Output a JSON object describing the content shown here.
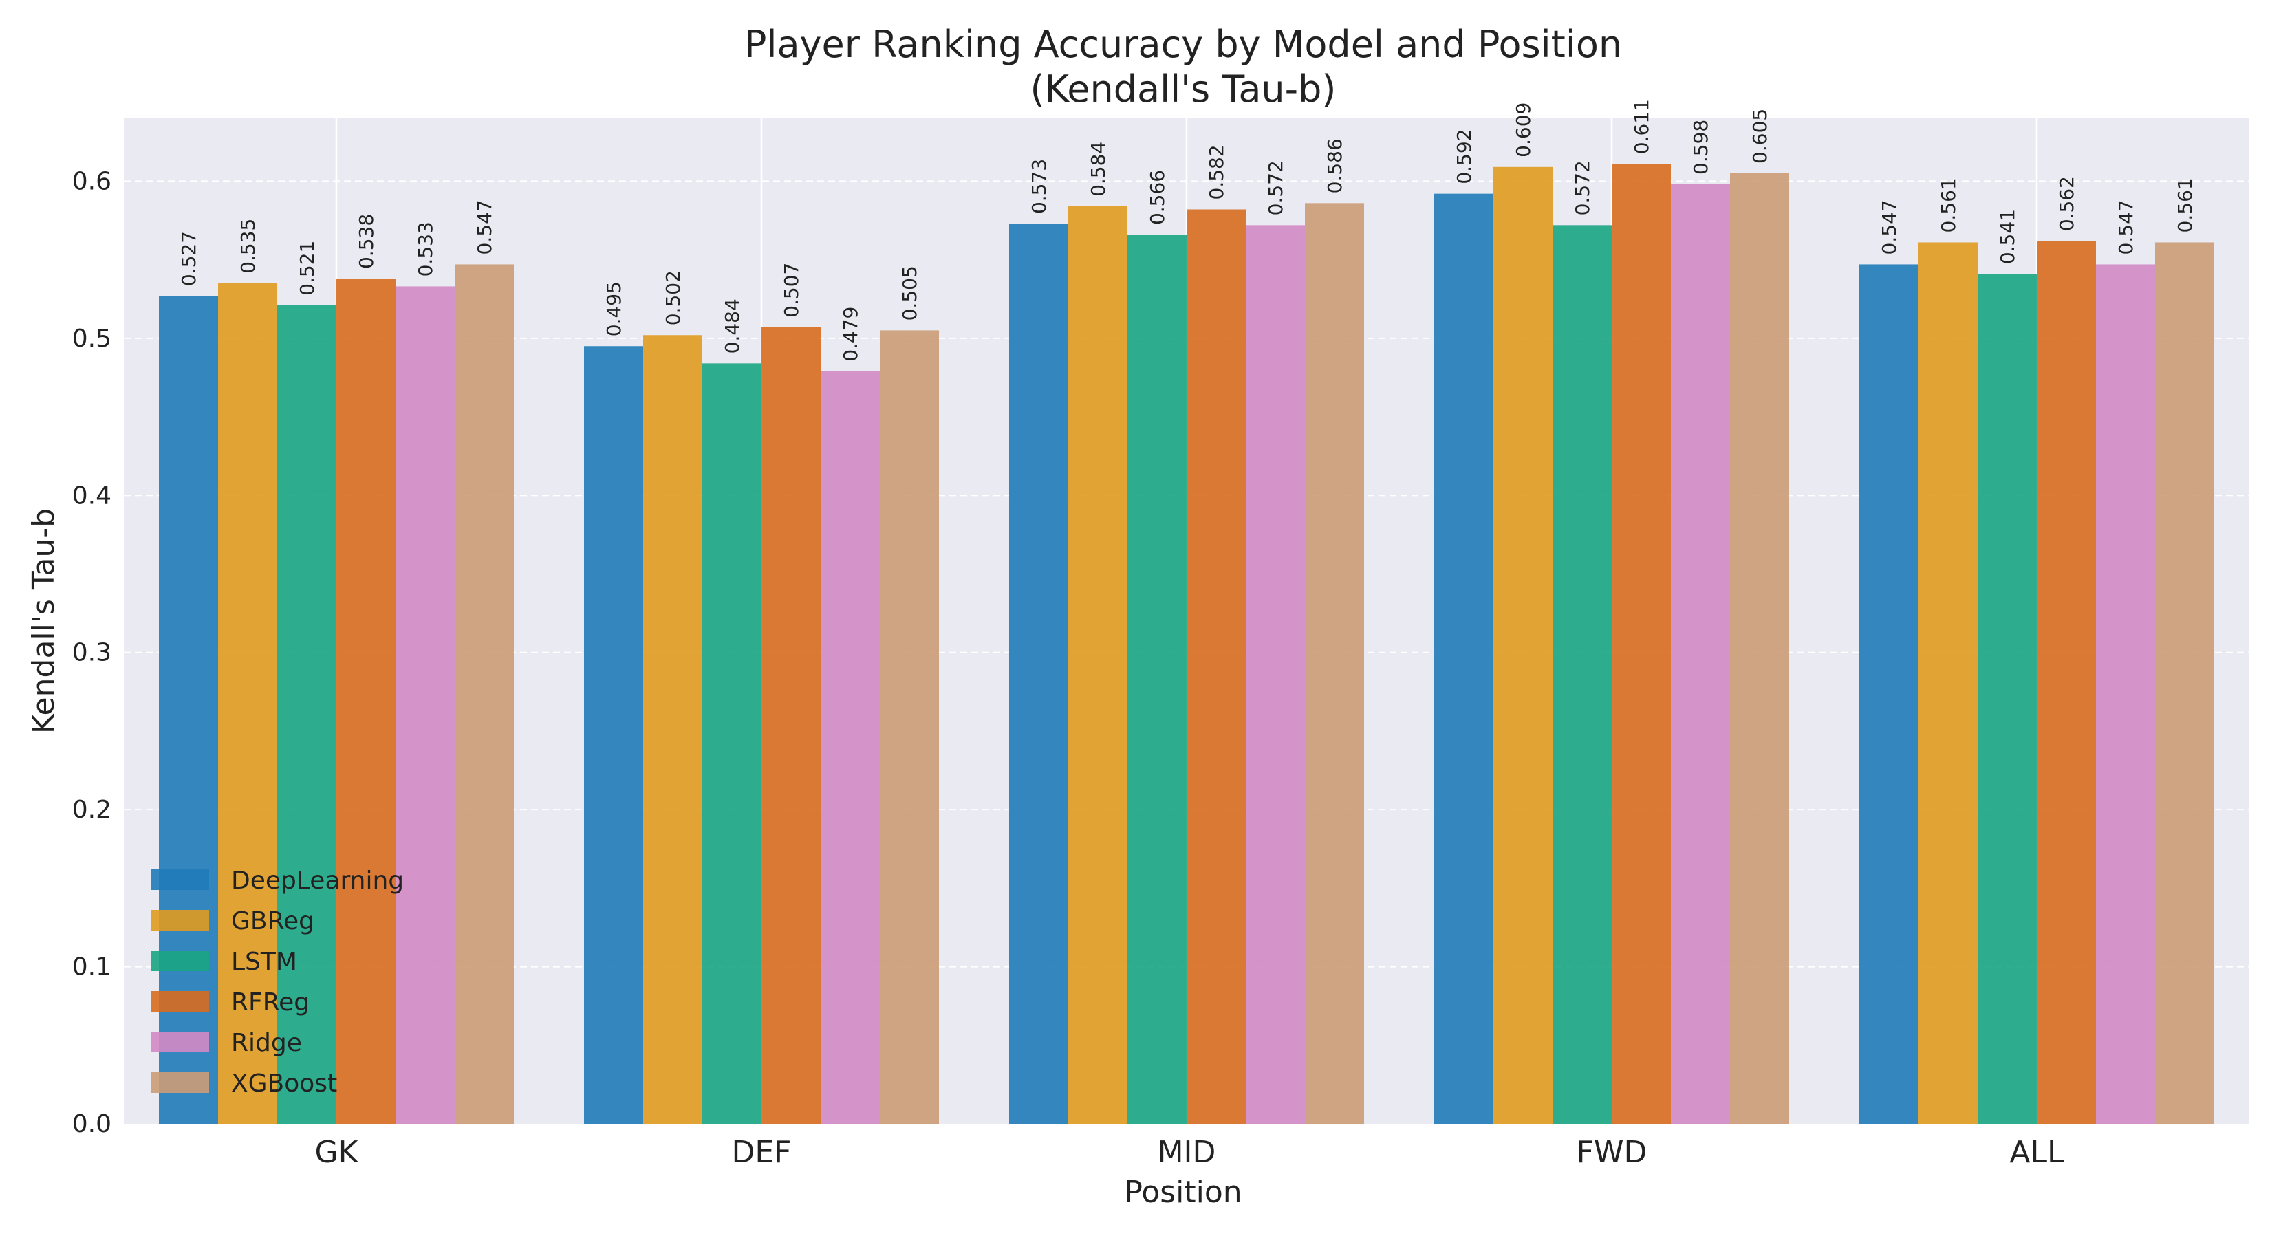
{
  "chart_data": {
    "type": "bar",
    "title": "Player Ranking Accuracy by Model and Position",
    "subtitle": "(Kendall's Tau-b)",
    "xlabel": "Position",
    "ylabel": "Kendall's Tau-b",
    "categories": [
      "GK",
      "DEF",
      "MID",
      "FWD",
      "ALL"
    ],
    "ylim": [
      0,
      0.64
    ],
    "yticks": [
      0.0,
      0.1,
      0.2,
      0.3,
      0.4,
      0.5,
      0.6
    ],
    "ytick_labels": [
      "0.0",
      "0.1",
      "0.2",
      "0.3",
      "0.4",
      "0.5",
      "0.6"
    ],
    "grid": true,
    "legend_position": "bottom-left",
    "series": [
      {
        "name": "DeepLearning",
        "color": "#1f7bb8",
        "values": [
          0.527,
          0.495,
          0.573,
          0.592,
          0.547
        ],
        "labels": [
          "0.527",
          "0.495",
          "0.573",
          "0.592",
          "0.547"
        ]
      },
      {
        "name": "GBReg",
        "color": "#e09b1f",
        "values": [
          0.535,
          0.502,
          0.584,
          0.609,
          0.561
        ],
        "labels": [
          "0.535",
          "0.502",
          "0.584",
          "0.609",
          "0.561"
        ]
      },
      {
        "name": "LSTM",
        "color": "#1aa583",
        "values": [
          0.521,
          0.484,
          0.566,
          0.572,
          0.541
        ],
        "labels": [
          "0.521",
          "0.484",
          "0.566",
          "0.572",
          "0.541"
        ]
      },
      {
        "name": "RFReg",
        "color": "#d86d1f",
        "values": [
          0.538,
          0.507,
          0.582,
          0.611,
          0.562
        ],
        "labels": [
          "0.538",
          "0.507",
          "0.582",
          "0.611",
          "0.562"
        ]
      },
      {
        "name": "Ridge",
        "color": "#d28ac4",
        "values": [
          0.533,
          0.479,
          0.572,
          0.598,
          0.547
        ],
        "labels": [
          "0.533",
          "0.479",
          "0.572",
          "0.598",
          "0.547"
        ]
      },
      {
        "name": "XGBoost",
        "color": "#cc9c76",
        "values": [
          0.547,
          0.505,
          0.586,
          0.605,
          0.561
        ],
        "labels": [
          "0.547",
          "0.505",
          "0.586",
          "0.605",
          "0.561"
        ]
      }
    ]
  }
}
